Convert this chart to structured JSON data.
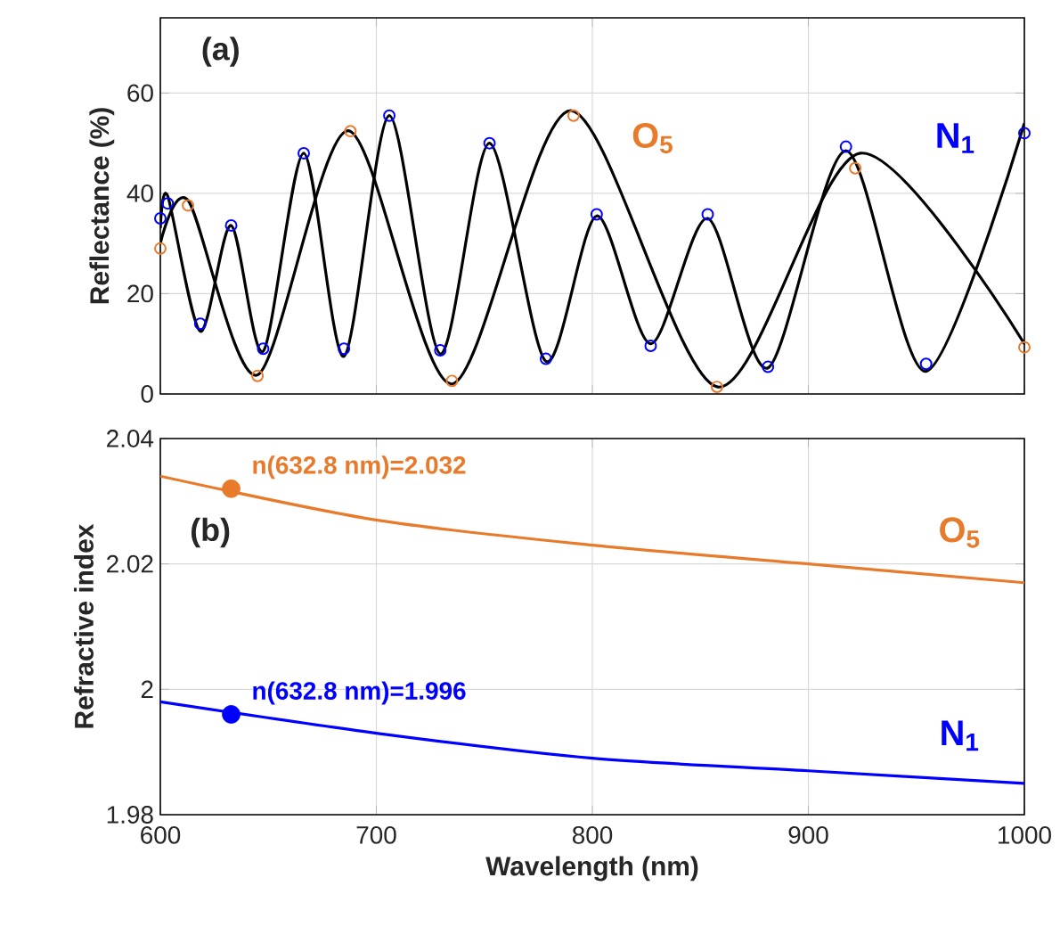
{
  "chart_data": [
    {
      "type": "line",
      "ylabel": "Reflectance (%)",
      "xlim": [
        600,
        1000
      ],
      "ylim": [
        0,
        75
      ],
      "xticks": [
        600,
        700,
        800,
        900,
        1000
      ],
      "yticks": [
        0,
        20,
        40,
        60
      ],
      "tick_labels": "y",
      "grid": true,
      "annotations": [
        "(a)"
      ],
      "series": [
        {
          "name": "O$_{5}$",
          "type": "scatter",
          "color": "#e87a2b",
          "marker": "circle",
          "x": [
            600,
            612.8,
            645,
            688,
            735,
            791.3,
            857.7,
            921.7,
            1000
          ],
          "values": [
            29,
            37.6,
            3.6,
            52.4,
            2.6,
            55.5,
            1.4,
            45,
            9.3
          ]
        },
        {
          "color": "#000000",
          "marker": "none",
          "line_style": "solid",
          "x": [
            600,
            613,
            645,
            687,
            735,
            790,
            858,
            924,
            1000
          ],
          "values": [
            30,
            38.5,
            3.8,
            52.5,
            2,
            56.5,
            1.4,
            48,
            10
          ]
        },
        {
          "name": "N$_{1}$",
          "type": "scatter",
          "color": "#0000ff",
          "marker": "circle",
          "x": [
            600,
            603.4,
            618.5,
            632.8,
            647.6,
            666.4,
            685,
            706,
            729.6,
            752.4,
            778.5,
            802,
            827,
            853.4,
            881.3,
            917.4,
            954.5,
            1000
          ],
          "values": [
            35,
            38,
            14,
            33.6,
            9,
            48,
            9,
            55.5,
            8.7,
            50,
            7,
            35.8,
            9.6,
            35.8,
            5.4,
            49.3,
            6,
            52
          ]
        },
        {
          "color": "#000000",
          "marker": "none",
          "line_style": "solid",
          "x": [
            600,
            603.4,
            618.5,
            632.8,
            647.6,
            666.4,
            685,
            706,
            729.6,
            752.4,
            778.5,
            802,
            827,
            853.4,
            881.3,
            917.4,
            954.5,
            1000
          ],
          "values": [
            33,
            39.5,
            12.5,
            33.6,
            8.5,
            48,
            7.5,
            55.5,
            8,
            50,
            6.5,
            35.5,
            10,
            35,
            5.2,
            48.5,
            4.5,
            54
          ]
        }
      ]
    },
    {
      "type": "line",
      "xlabel": "Wavelength (nm)",
      "ylabel": "Refractive index",
      "xlim": [
        600,
        1000
      ],
      "ylim": [
        1.98,
        2.04
      ],
      "xticks": [
        600,
        700,
        800,
        900,
        1000
      ],
      "yticks": [
        1.98,
        2,
        2.02,
        2.04
      ],
      "grid": true,
      "annotations": [
        "(b)",
        {
          "text": "n(632.8 nm)=2.032",
          "x": 632.8,
          "y": 2.032
        },
        {
          "text": "n(632.8 nm)=1.996",
          "x": 632.8,
          "y": 1.996
        }
      ],
      "series": [
        {
          "name": "O$_{5}$",
          "color": "#e87a2b",
          "marker": "none",
          "line_style": "solid",
          "x": [
            600,
            700,
            800,
            900,
            1000
          ],
          "values": [
            2.034,
            2.027,
            2.023,
            2.02,
            2.017
          ]
        },
        {
          "type": "scatter",
          "color": "#e87a2b",
          "marker": "circle",
          "x": [
            632.8
          ],
          "values": [
            2.032
          ]
        },
        {
          "name": "N$_{1}$",
          "color": "#0000ff",
          "marker": "none",
          "line_style": "solid",
          "x": [
            600,
            700,
            800,
            900,
            1000
          ],
          "values": [
            1.998,
            1.993,
            1.989,
            1.987,
            1.985
          ]
        },
        {
          "type": "scatter",
          "color": "#0000ff",
          "marker": "circle",
          "x": [
            632.8
          ],
          "values": [
            1.996
          ]
        }
      ]
    }
  ]
}
